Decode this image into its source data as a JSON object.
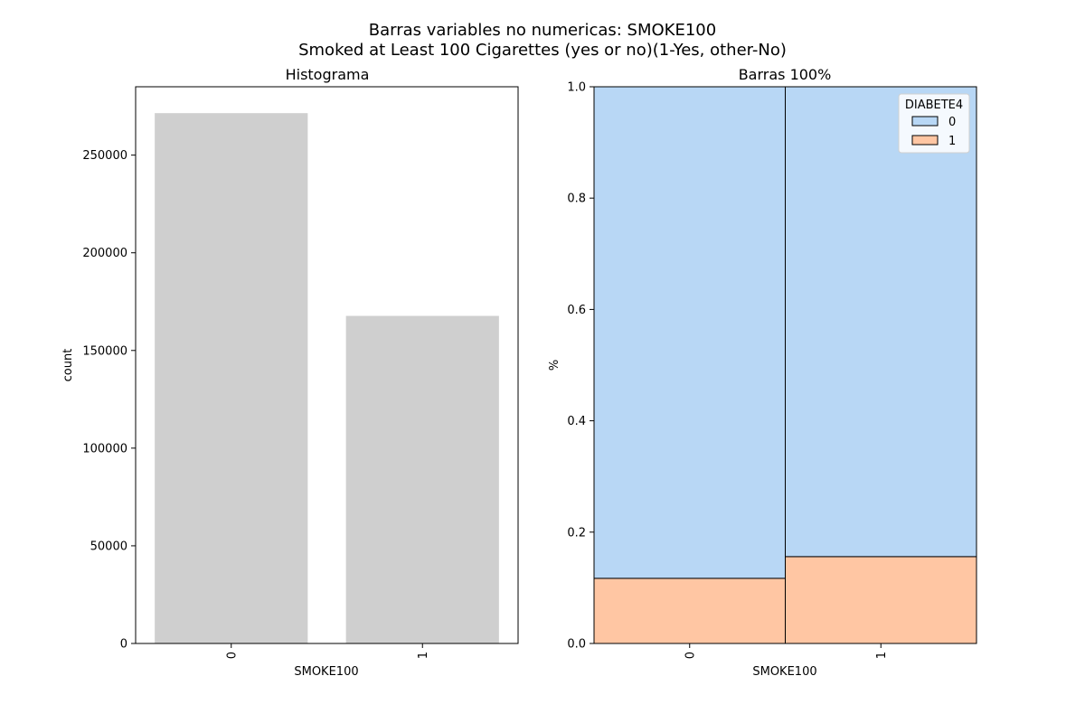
{
  "figure": {
    "title_line1": "Barras variables no numericas: SMOKE100",
    "title_line2": "Smoked at Least 100 Cigarettes (yes or no)(1-Yes, other-No)"
  },
  "chart_data": [
    {
      "type": "bar",
      "title": "Histograma",
      "xlabel": "SMOKE100",
      "ylabel": "count",
      "categories": [
        "0",
        "1"
      ],
      "values": [
        271500,
        167700
      ],
      "ylim": [
        0,
        285000
      ],
      "yticks": [
        0,
        50000,
        100000,
        150000,
        200000,
        250000
      ],
      "bar_color": "#cfcfcf",
      "grid": false
    },
    {
      "type": "bar",
      "stacked": true,
      "normalized": true,
      "title": "Barras 100%",
      "xlabel": "SMOKE100",
      "ylabel": "%",
      "categories": [
        "0",
        "1"
      ],
      "series": [
        {
          "name": "1",
          "values": [
            0.117,
            0.156
          ],
          "color": "#ffc6a3"
        },
        {
          "name": "0",
          "values": [
            0.883,
            0.844
          ],
          "color": "#b8d7f5"
        }
      ],
      "ylim": [
        0,
        1
      ],
      "yticks": [
        0.0,
        0.2,
        0.4,
        0.6,
        0.8,
        1.0
      ],
      "ytick_labels": [
        "0.0",
        "0.2",
        "0.4",
        "0.6",
        "0.8",
        "1.0"
      ],
      "legend": {
        "title": "DIABETE4",
        "placement": "top-right",
        "entries": [
          {
            "label": "0",
            "color": "#b8d7f5"
          },
          {
            "label": "1",
            "color": "#ffc6a3"
          }
        ]
      },
      "grid": false
    }
  ]
}
